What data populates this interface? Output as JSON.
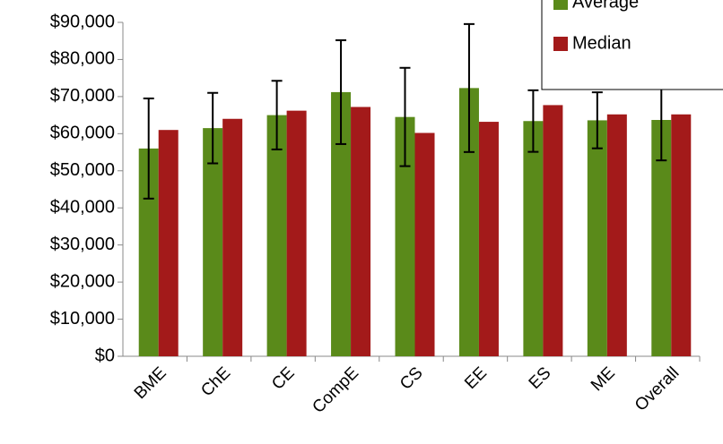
{
  "chart_data": {
    "type": "bar",
    "categories": [
      "BME",
      "ChE",
      "CE",
      "CompE",
      "CS",
      "EE",
      "ES",
      "ME",
      "Overall"
    ],
    "series": [
      {
        "name": "Average",
        "color": "#5a8a1a",
        "values": [
          56000,
          61500,
          65000,
          71200,
          64500,
          72300,
          63400,
          63600,
          63700
        ],
        "errors": [
          13500,
          9500,
          9250,
          14000,
          13250,
          17250,
          8300,
          7550,
          10900
        ]
      },
      {
        "name": "Median",
        "color": "#a31a1a",
        "values": [
          61000,
          64000,
          66200,
          67200,
          60200,
          63200,
          67700,
          65200,
          65200
        ]
      }
    ],
    "ylim": [
      0,
      90000
    ],
    "yticks": [
      {
        "value": 0,
        "label": "$0"
      },
      {
        "value": 10000,
        "label": "$10,000"
      },
      {
        "value": 20000,
        "label": "$20,000"
      },
      {
        "value": 30000,
        "label": "$30,000"
      },
      {
        "value": 40000,
        "label": "$40,000"
      },
      {
        "value": 50000,
        "label": "$50,000"
      },
      {
        "value": 60000,
        "label": "$60,000"
      },
      {
        "value": 70000,
        "label": "$70,000"
      },
      {
        "value": 80000,
        "label": "$80,000"
      },
      {
        "value": 90000,
        "label": "$90,000"
      }
    ],
    "legend": "top-right"
  }
}
